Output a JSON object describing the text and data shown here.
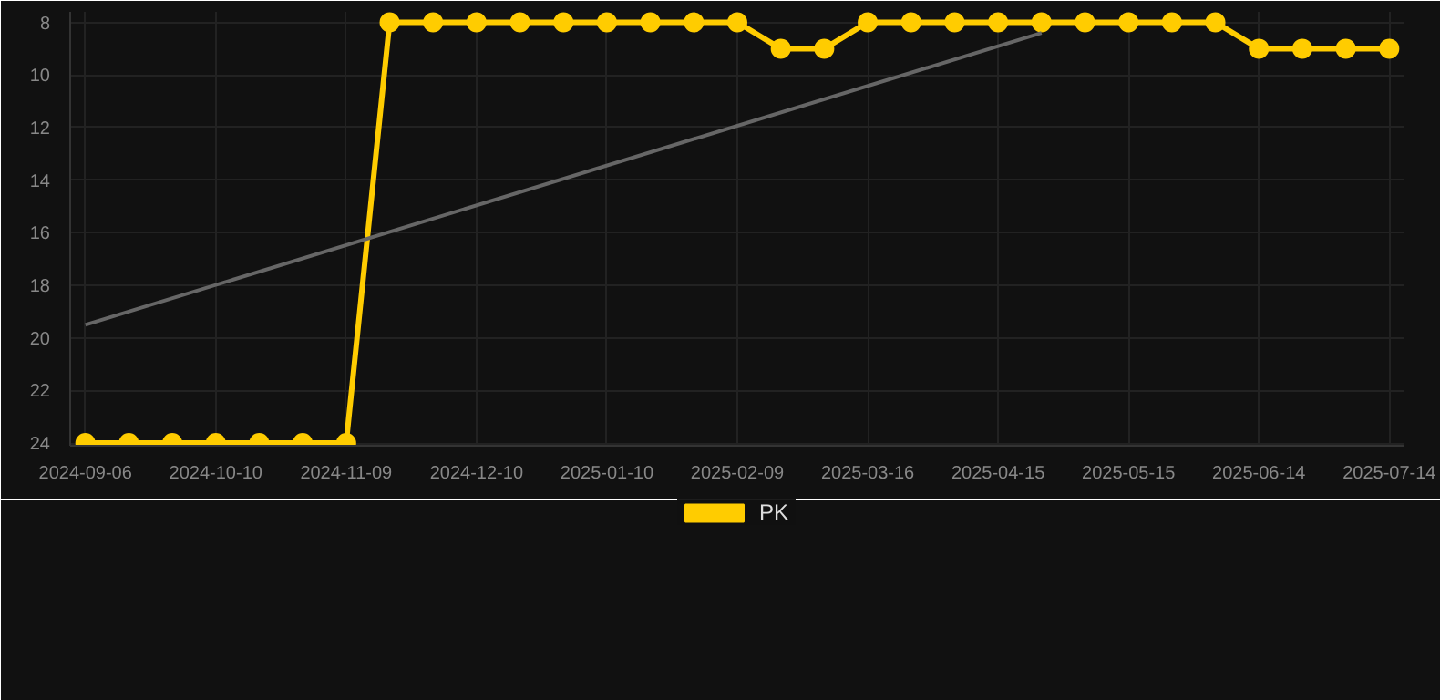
{
  "chart_data": {
    "type": "line",
    "categories": [
      "2024-09-06",
      null,
      null,
      "2024-10-10",
      null,
      null,
      "2024-11-09",
      null,
      null,
      "2024-12-10",
      null,
      null,
      "2025-01-10",
      null,
      null,
      "2025-02-09",
      null,
      null,
      "2025-03-16",
      null,
      null,
      "2025-04-15",
      null,
      null,
      "2025-05-15",
      null,
      null,
      "2025-06-14",
      null,
      null,
      "2025-07-14"
    ],
    "series": [
      {
        "name": "PK",
        "color": "#ffcc00",
        "values": [
          24,
          24,
          24,
          24,
          24,
          24,
          24,
          8,
          8,
          8,
          8,
          8,
          8,
          8,
          8,
          8,
          9,
          9,
          8,
          8,
          8,
          8,
          8,
          8,
          8,
          8,
          8,
          9,
          9,
          9,
          9
        ]
      },
      {
        "type": "line",
        "color": "#666666",
        "values": [
          19.5,
          null,
          null,
          null,
          null,
          null,
          null,
          null,
          null,
          null,
          null,
          null,
          null,
          null,
          null,
          null,
          null,
          null,
          null,
          null,
          null,
          null,
          8.4,
          null,
          null,
          null,
          null,
          null,
          null,
          null,
          null
        ],
        "marker": "none"
      }
    ],
    "ylim": [
      24.1,
      7.6
    ],
    "yticks": [
      8,
      10,
      12,
      14,
      16,
      18,
      20,
      22,
      24
    ],
    "grid": true,
    "legend": "bottom",
    "marker": "circle",
    "line_style": "solid"
  }
}
